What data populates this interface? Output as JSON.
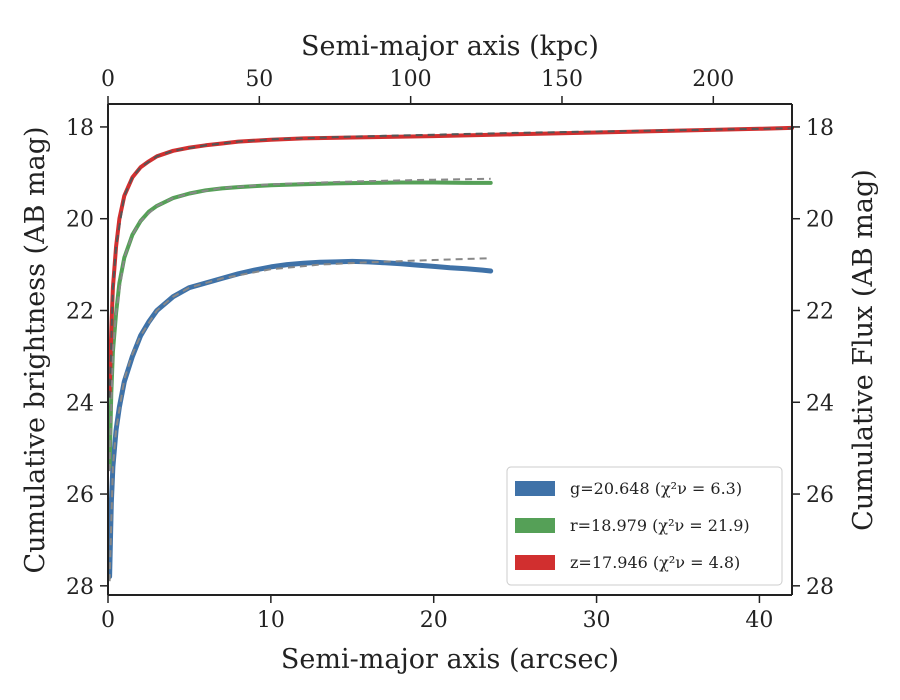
{
  "chart_data": {
    "type": "line",
    "x_label": "Semi-major axis (arcsec)",
    "x_top_label": "Semi-major axis (kpc)",
    "y_label": "Cumulative brightness (AB mag)",
    "y_right_label": "Cumulative Flux (AB mag)",
    "xlim": [
      0,
      42
    ],
    "ylim": [
      28.2,
      17.5
    ],
    "x_ticks": [
      0,
      10,
      20,
      30,
      40
    ],
    "y_ticks": [
      18,
      20,
      22,
      24,
      26,
      28
    ],
    "x_top_ticks": [
      0,
      50,
      100,
      150,
      200
    ],
    "x_top_lim": [
      0,
      226
    ],
    "legend_position": "lower-right",
    "series": [
      {
        "name": "g=20.648",
        "chi_label": "χ²ν = 6.3",
        "color": "#3f72a8",
        "x": [
          0.1,
          0.2,
          0.3,
          0.5,
          0.7,
          1,
          1.5,
          2,
          2.5,
          3,
          4,
          5,
          6,
          7,
          8,
          9,
          10,
          11,
          12,
          13,
          14,
          15,
          16,
          17,
          18,
          19,
          20,
          21,
          22,
          23,
          23.5
        ],
        "y": [
          27.8,
          26.2,
          25.4,
          24.6,
          24.1,
          23.55,
          23.0,
          22.55,
          22.25,
          22.0,
          21.7,
          21.5,
          21.4,
          21.3,
          21.2,
          21.12,
          21.05,
          21.0,
          20.97,
          20.95,
          20.94,
          20.93,
          20.94,
          20.96,
          20.98,
          21.01,
          21.04,
          21.07,
          21.09,
          21.12,
          21.14
        ]
      },
      {
        "name": "r=18.979",
        "chi_label": "χ²ν = 21.9",
        "color": "#55a057",
        "x": [
          0.1,
          0.2,
          0.3,
          0.5,
          0.7,
          1,
          1.5,
          2,
          2.5,
          3,
          4,
          5,
          6,
          7,
          8,
          9,
          10,
          12,
          14,
          16,
          18,
          20,
          22,
          23.5
        ],
        "y": [
          25.4,
          23.8,
          22.9,
          22.05,
          21.4,
          20.85,
          20.35,
          20.05,
          19.85,
          19.72,
          19.55,
          19.45,
          19.38,
          19.34,
          19.31,
          19.29,
          19.27,
          19.25,
          19.23,
          19.22,
          19.21,
          19.21,
          19.22,
          19.22
        ]
      },
      {
        "name": "z=17.946",
        "chi_label": "χ²ν = 4.8",
        "color": "#d12f2f",
        "x": [
          0.1,
          0.2,
          0.3,
          0.5,
          0.7,
          1,
          1.5,
          2,
          2.5,
          3,
          4,
          5,
          6,
          7,
          8,
          10,
          12,
          15,
          20,
          25,
          30,
          35,
          40,
          42
        ],
        "y": [
          23.8,
          22.4,
          21.5,
          20.6,
          20.0,
          19.5,
          19.1,
          18.88,
          18.75,
          18.64,
          18.52,
          18.45,
          18.4,
          18.36,
          18.32,
          18.28,
          18.25,
          18.23,
          18.2,
          18.16,
          18.12,
          18.08,
          18.04,
          18.02
        ]
      }
    ],
    "fits": [
      {
        "color": "#888888",
        "x": [
          0.1,
          0.3,
          0.5,
          1,
          1.5,
          2,
          3,
          4,
          5,
          7,
          10,
          13,
          16,
          20,
          23.5
        ],
        "y": [
          27.9,
          25.4,
          24.6,
          23.5,
          22.95,
          22.55,
          22.0,
          21.7,
          21.5,
          21.3,
          21.1,
          21.0,
          20.95,
          20.9,
          20.86
        ]
      },
      {
        "color": "#888888",
        "x": [
          0.1,
          0.3,
          0.5,
          1,
          1.5,
          2,
          3,
          4,
          5,
          7,
          10,
          13,
          16,
          20,
          23.5
        ],
        "y": [
          25.5,
          22.9,
          22.05,
          20.85,
          20.35,
          20.05,
          19.72,
          19.55,
          19.45,
          19.33,
          19.25,
          19.21,
          19.18,
          19.15,
          19.13
        ]
      },
      {
        "color": "#555555",
        "x": [
          0.1,
          0.3,
          0.5,
          1,
          1.5,
          2,
          3,
          4,
          6,
          8,
          10,
          15,
          20,
          25,
          30,
          35,
          40,
          42
        ],
        "y": [
          23.9,
          21.5,
          20.6,
          19.5,
          19.1,
          18.88,
          18.64,
          18.52,
          18.4,
          18.32,
          18.27,
          18.21,
          18.17,
          18.13,
          18.1,
          18.07,
          18.04,
          18.03
        ]
      }
    ]
  }
}
